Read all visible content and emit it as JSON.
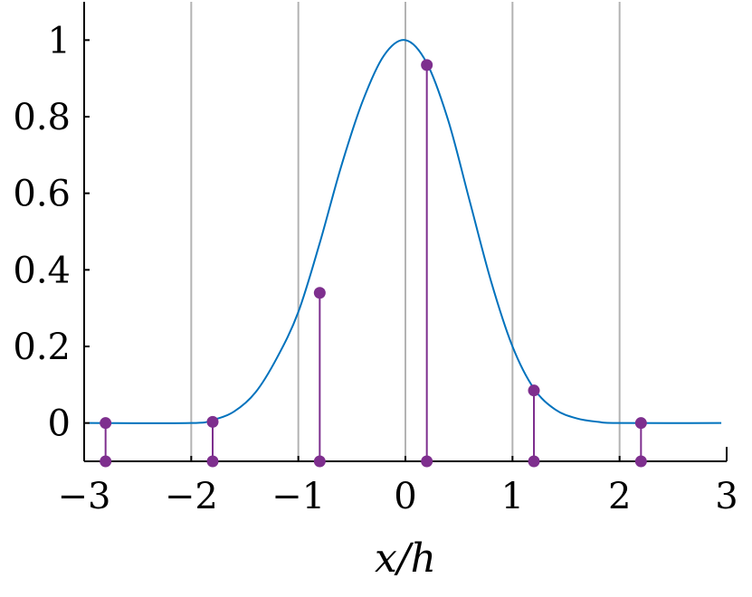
{
  "chart_data": {
    "type": "line",
    "xlabel": "x/h",
    "ylabel": "",
    "xlim": [
      -3,
      3
    ],
    "ylim": [
      -0.1,
      1.1
    ],
    "xticks": [
      -3,
      -2,
      -1,
      0,
      1,
      2,
      3
    ],
    "yticks": [
      0,
      0.2,
      0.4,
      0.6,
      0.8,
      1
    ],
    "xtick_labels": [
      "−3",
      "−2",
      "−1",
      "0",
      "1",
      "2",
      "3"
    ],
    "ytick_labels": [
      "0",
      "0.2",
      "0.4",
      "0.6",
      "0.8",
      "1"
    ],
    "vertical_gridlines": [
      -2,
      -1,
      0,
      1,
      2
    ],
    "grid": "vertical only",
    "series": [
      {
        "kind": "curve",
        "color": "#0072BD",
        "x": [
          -2.95,
          -2.0,
          -1.8,
          -1.6,
          -1.4,
          -1.2,
          -1.0,
          -0.8,
          -0.6,
          -0.4,
          -0.2,
          0.0,
          0.2,
          0.4,
          0.6,
          0.8,
          1.0,
          1.2,
          1.4,
          1.6,
          1.8,
          2.0,
          2.95
        ],
        "y": [
          0.0,
          0.0,
          0.008,
          0.03,
          0.08,
          0.17,
          0.29,
          0.47,
          0.67,
          0.84,
          0.96,
          1.0,
          0.94,
          0.79,
          0.58,
          0.37,
          0.2,
          0.09,
          0.035,
          0.012,
          0.003,
          0.0,
          0.0
        ]
      },
      {
        "kind": "stems",
        "color": "#7E2F8E",
        "baseline": -0.1,
        "x": [
          -2.8,
          -1.8,
          -0.8,
          0.2,
          1.2,
          2.2
        ],
        "y": [
          0.0,
          0.003,
          0.34,
          0.935,
          0.085,
          0.0
        ]
      }
    ]
  }
}
